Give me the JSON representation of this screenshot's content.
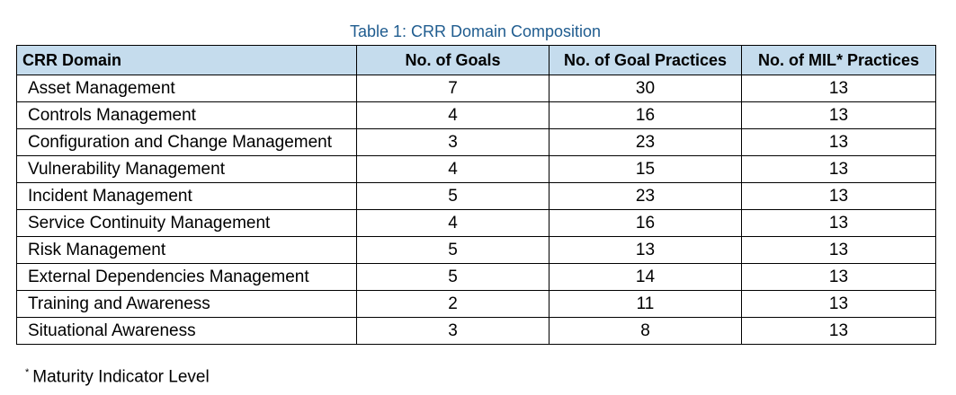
{
  "caption": "Table 1: CRR Domain Composition",
  "table": {
    "header": [
      "CRR Domain",
      "No. of Goals",
      "No. of Goal Practices",
      "No. of MIL* Practices"
    ],
    "rows": [
      [
        "Asset Management",
        7,
        30,
        13
      ],
      [
        "Controls Management",
        4,
        16,
        13
      ],
      [
        "Configuration and Change Management",
        3,
        23,
        13
      ],
      [
        "Vulnerability Management",
        4,
        15,
        13
      ],
      [
        "Incident Management",
        5,
        23,
        13
      ],
      [
        "Service Continuity Management",
        4,
        16,
        13
      ],
      [
        "Risk Management",
        5,
        13,
        13
      ],
      [
        "External Dependencies Management",
        5,
        14,
        13
      ],
      [
        "Training and Awareness",
        2,
        11,
        13
      ],
      [
        "Situational Awareness",
        3,
        8,
        13
      ]
    ]
  },
  "footnote": {
    "marker": "*",
    "text": "Maturity Indicator Level"
  }
}
